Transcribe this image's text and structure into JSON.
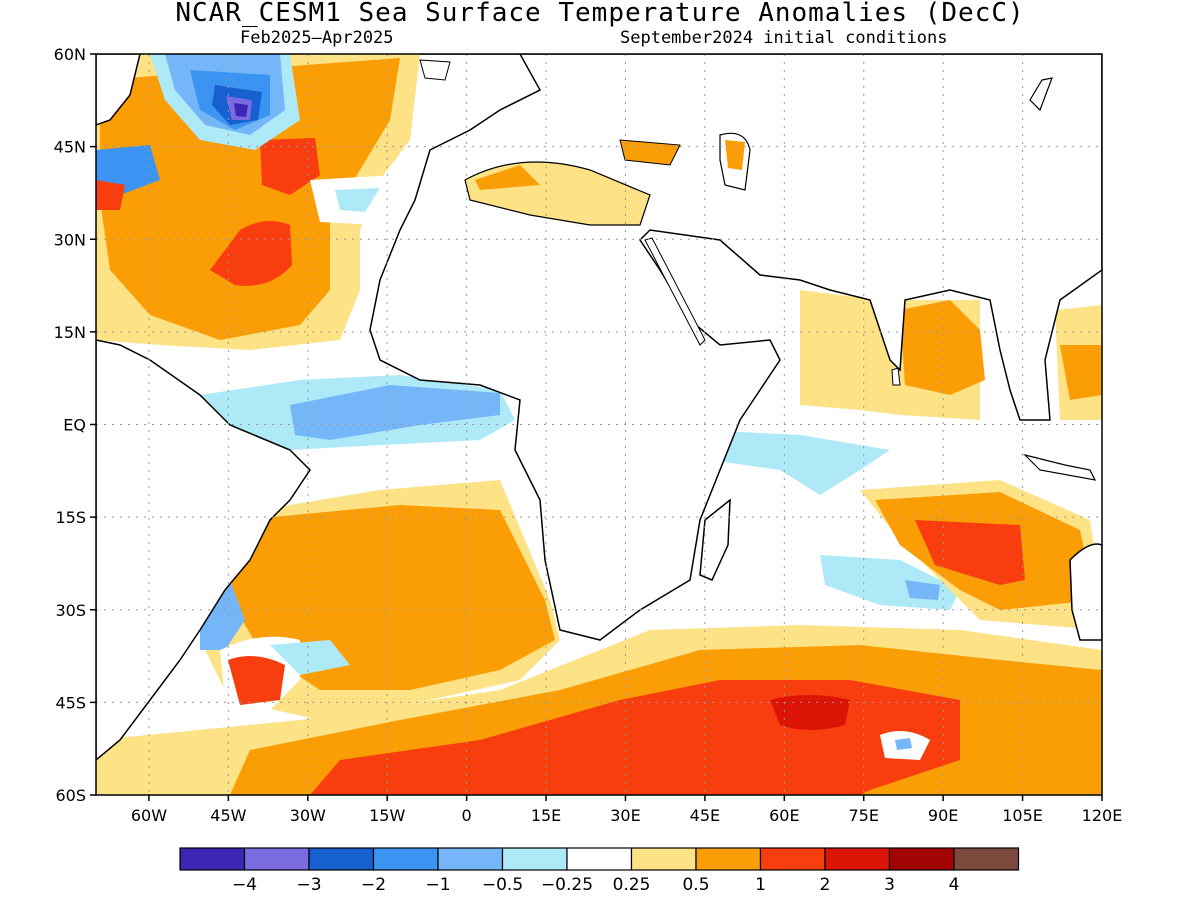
{
  "title": "NCAR_CESM1 Sea Surface Temperature Anomalies (DecC)",
  "subtitle_left": "Feb2025–Apr2025",
  "subtitle_right": "September2024 initial conditions",
  "map": {
    "lon_range": [
      -70,
      120
    ],
    "lat_range": [
      -60,
      60
    ],
    "grid": true,
    "lat_ticks": [
      "60N",
      "45N",
      "30N",
      "15N",
      "EQ",
      "15S",
      "30S",
      "45S",
      "60S"
    ],
    "lon_ticks": [
      "60W",
      "45W",
      "30W",
      "15W",
      "0",
      "15E",
      "30E",
      "45E",
      "60E",
      "75E",
      "90E",
      "105E",
      "120E"
    ]
  },
  "colorbar": {
    "colors": [
      "#3d26b5",
      "#7a6be0",
      "#1760d0",
      "#3c94f2",
      "#74b6f7",
      "#ade9f7",
      "#ffffff",
      "#fde286",
      "#fb9e05",
      "#f83d0f",
      "#dc1406",
      "#a20404",
      "#7c4a3c"
    ],
    "labels": [
      "−4",
      "−3",
      "−2",
      "−1",
      "−0.5",
      "−0.25",
      "0.25",
      "0.5",
      "1",
      "2",
      "3",
      "4"
    ]
  }
}
